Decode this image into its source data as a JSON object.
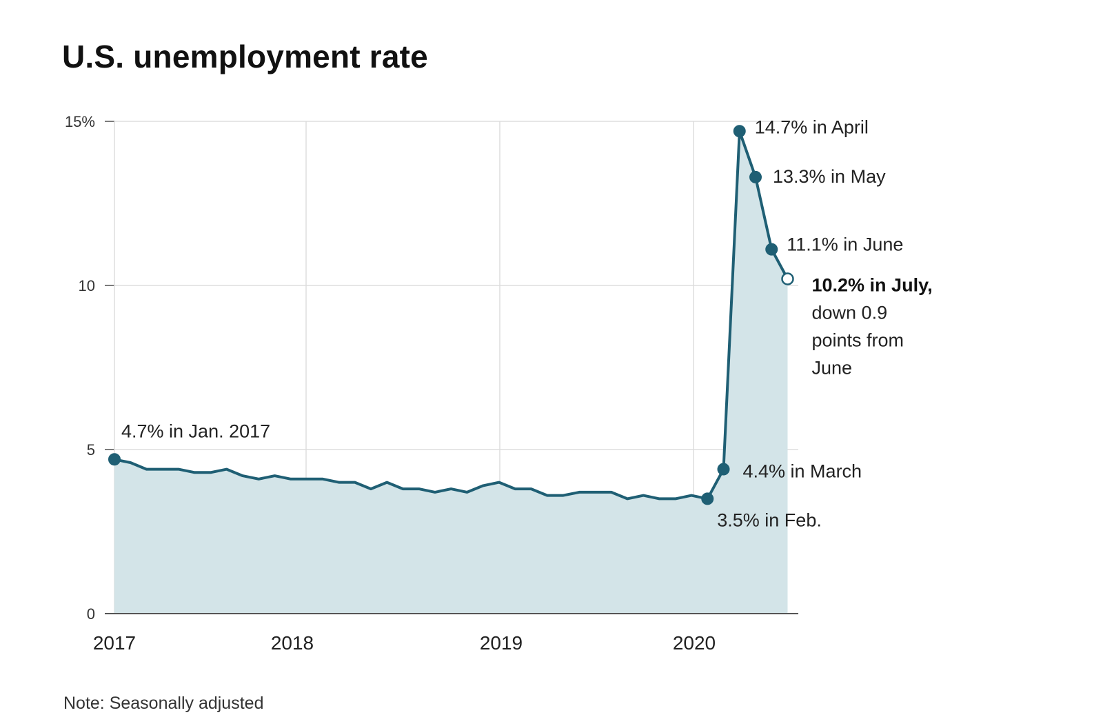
{
  "page": {
    "title": "U.S. unemployment rate",
    "note": "Note: Seasonally adjusted"
  },
  "colors": {
    "line": "#1f5f74",
    "area": "#d3e4e8",
    "grid": "#dddddd",
    "axis": "#555555"
  },
  "chart_data": {
    "type": "area",
    "title": "U.S. unemployment rate",
    "xlabel": "",
    "ylabel": "",
    "ylim": [
      0,
      15
    ],
    "yticks": [
      0,
      5,
      10,
      15
    ],
    "ytick_labels": [
      "0",
      "5",
      "10",
      "15%"
    ],
    "xticks": [
      "2017",
      "2018",
      "2019",
      "2020"
    ],
    "grid": true,
    "series": [
      {
        "name": "Unemployment rate",
        "start": "Jan. 2017",
        "frequency": "monthly",
        "values": [
          4.7,
          4.6,
          4.4,
          4.4,
          4.4,
          4.3,
          4.3,
          4.4,
          4.2,
          4.1,
          4.2,
          4.1,
          4.1,
          4.1,
          4.0,
          4.0,
          3.8,
          4.0,
          3.8,
          3.8,
          3.7,
          3.8,
          3.7,
          3.9,
          4.0,
          3.8,
          3.8,
          3.6,
          3.6,
          3.7,
          3.7,
          3.7,
          3.5,
          3.6,
          3.5,
          3.5,
          3.6,
          3.5,
          4.4,
          14.7,
          13.3,
          11.1,
          10.2
        ]
      }
    ],
    "annotations": [
      {
        "index": 0,
        "text": "4.7% in Jan. 2017"
      },
      {
        "index": 37,
        "text": "3.5% in Feb."
      },
      {
        "index": 38,
        "text": "4.4% in March"
      },
      {
        "index": 39,
        "text": "14.7% in April"
      },
      {
        "index": 40,
        "text": "13.3% in May"
      },
      {
        "index": 41,
        "text": "11.1% in June"
      },
      {
        "index": 42,
        "text_bold": "10.2% in July,",
        "text_lines": [
          "down 0.9",
          "points from",
          "June"
        ]
      }
    ]
  }
}
